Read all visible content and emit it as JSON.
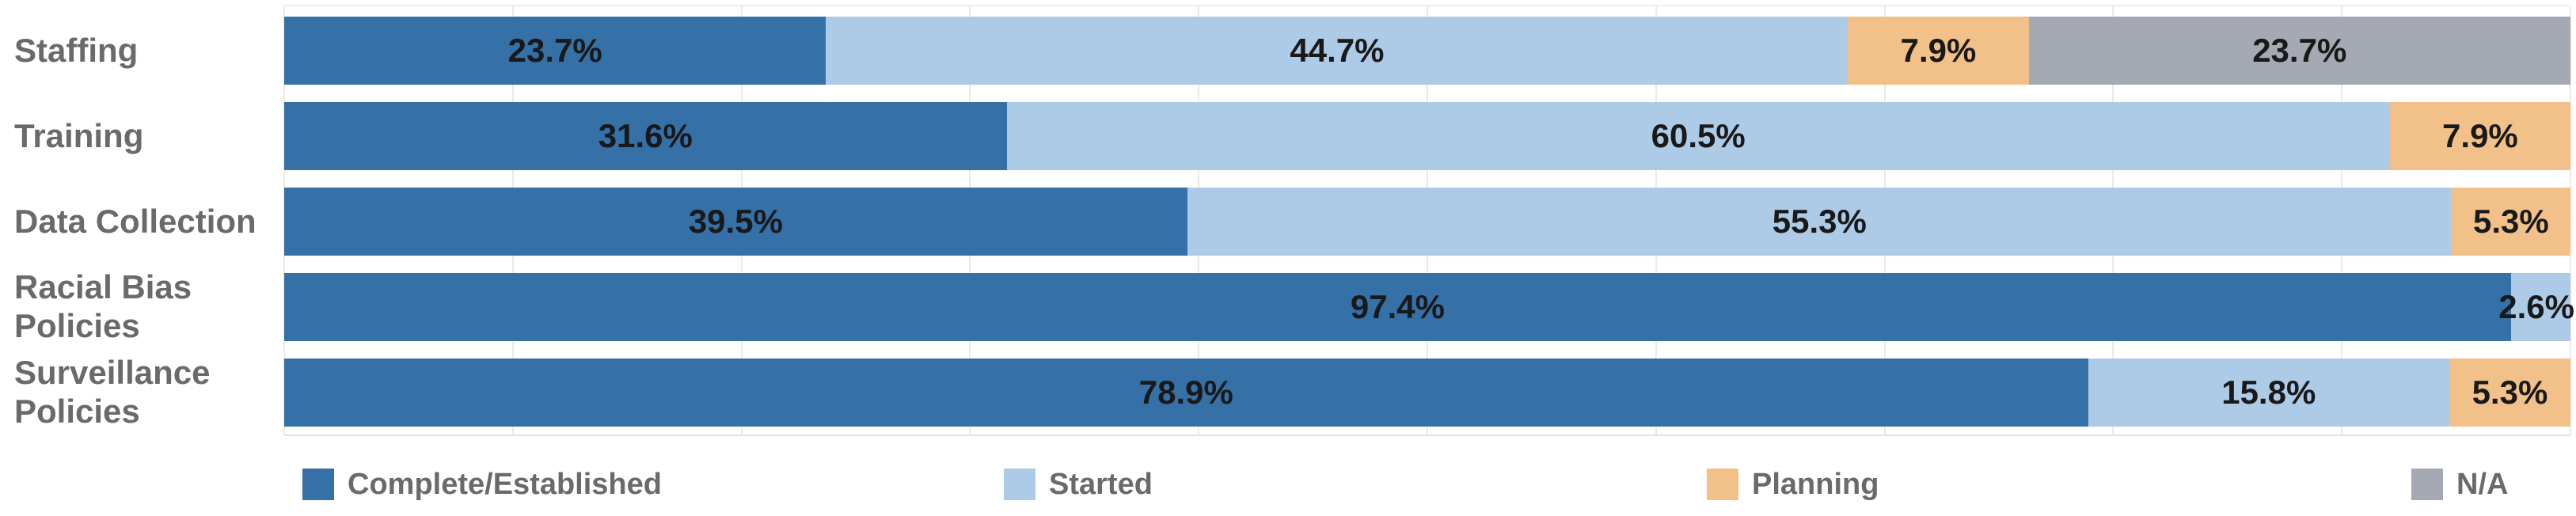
{
  "chart_data": {
    "type": "bar",
    "orientation": "horizontal",
    "stacked": true,
    "unit": "percent",
    "title": "",
    "xlabel": "",
    "ylabel": "",
    "xlim": [
      0,
      100
    ],
    "gridlines": {
      "show": true,
      "every": 10
    },
    "legend_position": "bottom",
    "data_labels": "inside",
    "label_format": "0.0%",
    "categories": [
      "Staffing",
      "Training",
      "Data Collection",
      "Racial Bias Policies",
      "Surveillance Policies"
    ],
    "category_display": [
      "Staffing",
      "Training",
      "Data Collection",
      "Racial Bias\nPolicies",
      "Surveillance\nPolicies"
    ],
    "series": [
      {
        "name": "Complete/Established",
        "color": "#3570a6",
        "values": [
          23.7,
          31.6,
          39.5,
          97.4,
          78.9
        ]
      },
      {
        "name": "Started",
        "color": "#adcae6",
        "values": [
          44.7,
          60.5,
          55.3,
          2.6,
          15.8
        ]
      },
      {
        "name": "Planning",
        "color": "#f2c189",
        "values": [
          7.9,
          7.9,
          5.3,
          0,
          5.3
        ]
      },
      {
        "name": "N/A",
        "color": "#a5a9b3",
        "values": [
          23.7,
          0,
          0,
          0,
          0
        ]
      }
    ],
    "colors": {
      "grid": "#eaeaea",
      "axis_border": "#e2e2e2",
      "category_text": "#6a6a6a",
      "value_text": "#191919",
      "legend_text": "#6a6a6a",
      "background": "#ffffff"
    }
  }
}
